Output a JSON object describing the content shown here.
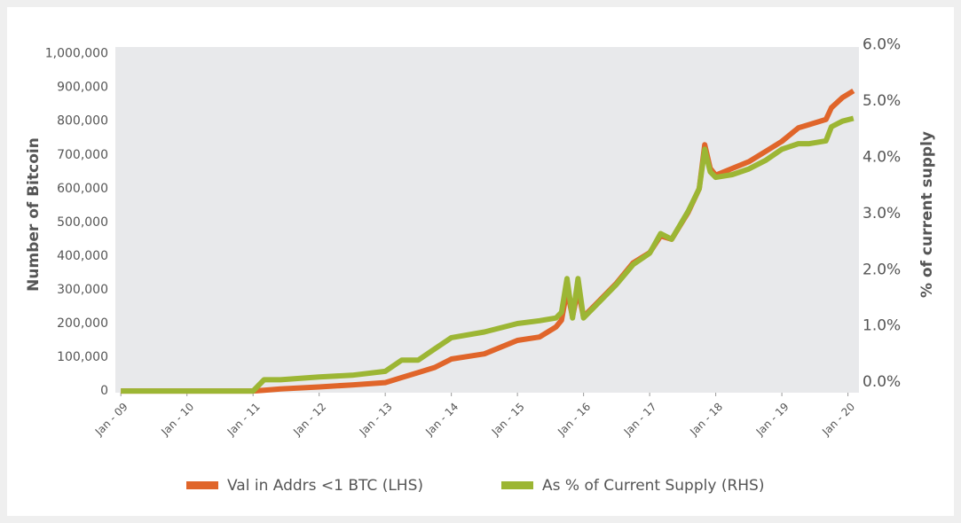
{
  "chart_data": {
    "type": "line",
    "y_label": "Number of Bitcoin",
    "y2_label": "% of current supply",
    "x": [
      "2009-01",
      "2010-01",
      "2010-06",
      "2011-01",
      "2011-03",
      "2011-06",
      "2012-01",
      "2012-07",
      "2013-01",
      "2013-04",
      "2013-07",
      "2013-10",
      "2014-01",
      "2014-07",
      "2015-01",
      "2015-05",
      "2015-08",
      "2015-09",
      "2015-10",
      "2015-11",
      "2015-12",
      "2016-01",
      "2016-04",
      "2016-07",
      "2016-10",
      "2017-01",
      "2017-03",
      "2017-05",
      "2017-08",
      "2017-10",
      "2017-11",
      "2017-12",
      "2018-01",
      "2018-04",
      "2018-07",
      "2018-10",
      "2019-01",
      "2019-04",
      "2019-06",
      "2019-09",
      "2019-10",
      "2019-12",
      "2020-02"
    ],
    "series": [
      {
        "name": "Val in Addrs <1 BTC (LHS)",
        "color": "#e0652a",
        "axis": "y",
        "values": [
          0,
          0,
          0,
          0,
          2000,
          6000,
          12000,
          18000,
          25000,
          40000,
          55000,
          70000,
          95000,
          110000,
          150000,
          160000,
          190000,
          210000,
          300000,
          220000,
          300000,
          220000,
          270000,
          320000,
          380000,
          410000,
          460000,
          450000,
          530000,
          600000,
          730000,
          660000,
          640000,
          660000,
          680000,
          710000,
          740000,
          780000,
          790000,
          805000,
          840000,
          870000,
          890000
        ]
      },
      {
        "name": "As % of Current Supply (RHS)",
        "color": "#9cb634",
        "axis": "y2",
        "values": [
          0,
          0,
          0,
          0,
          0.2,
          0.2,
          0.25,
          0.28,
          0.35,
          0.55,
          0.55,
          0.75,
          0.95,
          1.05,
          1.2,
          1.25,
          1.3,
          1.4,
          2.0,
          1.3,
          2.0,
          1.3,
          1.6,
          1.9,
          2.25,
          2.45,
          2.8,
          2.7,
          3.2,
          3.6,
          4.3,
          3.9,
          3.8,
          3.85,
          3.95,
          4.1,
          4.3,
          4.4,
          4.4,
          4.45,
          4.7,
          4.8,
          4.85
        ]
      }
    ],
    "xlim": [
      "2008-12",
      "2020-03"
    ],
    "xticks": [
      {
        "value": "2009-01",
        "label": "Jan - 09"
      },
      {
        "value": "2010-01",
        "label": "Jan - 10"
      },
      {
        "value": "2011-01",
        "label": "Jan - 11"
      },
      {
        "value": "2012-01",
        "label": "Jan - 12"
      },
      {
        "value": "2013-01",
        "label": "Jan - 13"
      },
      {
        "value": "2014-01",
        "label": "Jan - 14"
      },
      {
        "value": "2015-01",
        "label": "Jan - 15"
      },
      {
        "value": "2016-01",
        "label": "Jan - 16"
      },
      {
        "value": "2017-01",
        "label": "Jan - 17"
      },
      {
        "value": "2018-01",
        "label": "Jan - 18"
      },
      {
        "value": "2019-01",
        "label": "Jan - 19"
      },
      {
        "value": "2020-01",
        "label": "Jan - 20"
      }
    ],
    "ylim": [
      -5000,
      1020000
    ],
    "yticks": [
      0,
      {
        "value": 100000,
        "label": "100,000"
      },
      {
        "value": 200000,
        "label": "200,000"
      },
      {
        "value": 300000,
        "label": "300,000"
      },
      {
        "value": 400000,
        "label": "400,000"
      },
      {
        "value": 500000,
        "label": "500,000"
      },
      {
        "value": 600000,
        "label": "600,000"
      },
      {
        "value": 700000,
        "label": "700,000"
      },
      {
        "value": 800000,
        "label": "800,000"
      },
      {
        "value": 900000,
        "label": "900,000"
      },
      {
        "value": 1000000,
        "label": "1,000,000"
      }
    ],
    "y2lim": [
      -0.03,
      6.12
    ],
    "y2ticks": [
      {
        "value": 0,
        "label": "0.0%"
      },
      {
        "value": 1,
        "label": "1.0%"
      },
      {
        "value": 2,
        "label": "2.0%"
      },
      {
        "value": 3,
        "label": "3.0%"
      },
      {
        "value": 4,
        "label": "4.0%"
      },
      {
        "value": 5,
        "label": "5.0%"
      },
      {
        "value": 6,
        "label": "6.0%"
      }
    ]
  }
}
